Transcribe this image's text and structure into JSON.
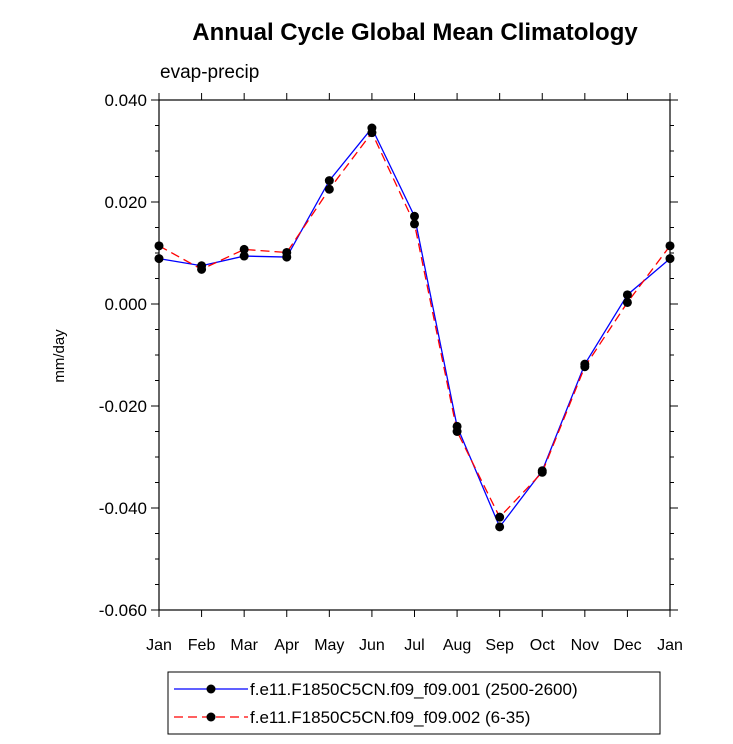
{
  "chart_data": {
    "type": "line",
    "title": "Annual Cycle Global Mean Climatology",
    "subtitle": "evap-precip",
    "xlabel": "",
    "ylabel": "mm/day",
    "categories": [
      "Jan",
      "Feb",
      "Mar",
      "Apr",
      "May",
      "Jun",
      "Jul",
      "Aug",
      "Sep",
      "Oct",
      "Nov",
      "Dec",
      "Jan"
    ],
    "ylim": [
      -0.06,
      0.04
    ],
    "yticks": [
      {
        "value": 0.04,
        "label": "0.040"
      },
      {
        "value": 0.02,
        "label": "0.020"
      },
      {
        "value": 0.0,
        "label": "0.000"
      },
      {
        "value": -0.02,
        "label": "-0.020"
      },
      {
        "value": -0.04,
        "label": "-0.040"
      },
      {
        "value": -0.06,
        "label": "-0.060"
      }
    ],
    "grid": false,
    "legend_position": "bottom",
    "series": [
      {
        "name": "f.e11.F1850C5CN.f09_f09.001 (2500-2600)",
        "color": "#0000ff",
        "dash": "solid",
        "marker_color": "#000000",
        "values": [
          0.0089,
          0.0075,
          0.0094,
          0.0092,
          0.0242,
          0.0345,
          0.0172,
          -0.024,
          -0.0437,
          -0.0327,
          -0.0118,
          0.0018,
          0.0089
        ]
      },
      {
        "name": "f.e11.F1850C5CN.f09_f09.002 (6-35)",
        "color": "#ff0000",
        "dash": "dashed",
        "marker_color": "#000000",
        "values": [
          0.0114,
          0.0068,
          0.0107,
          0.0101,
          0.0225,
          0.0336,
          0.0157,
          -0.025,
          -0.0418,
          -0.033,
          -0.0123,
          0.0003,
          0.0114
        ]
      }
    ]
  }
}
